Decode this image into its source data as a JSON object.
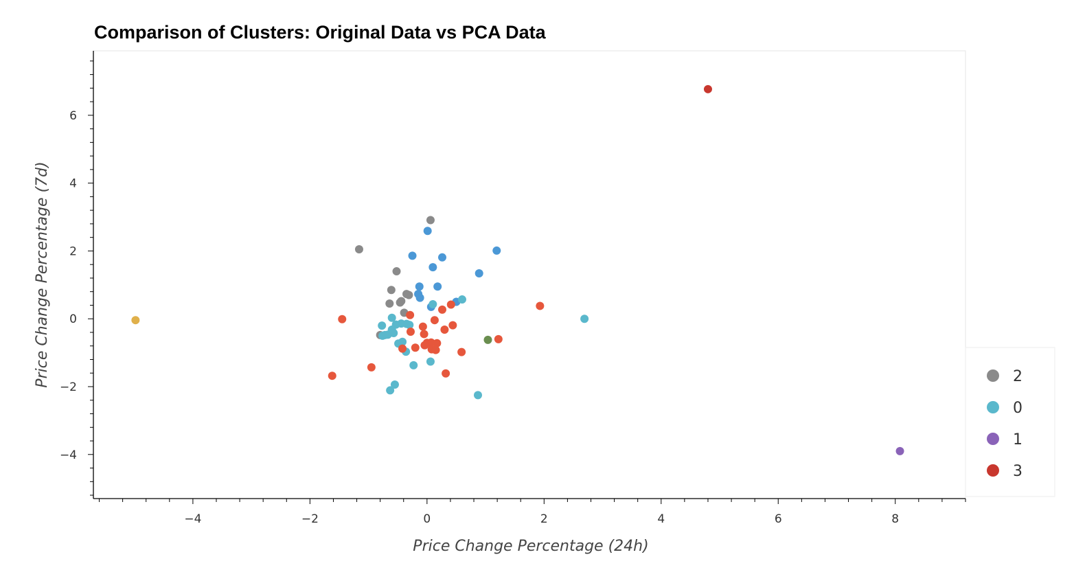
{
  "chart_data": {
    "type": "scatter",
    "title": "Comparison of Clusters: Original Data vs PCA Data",
    "xlabel": "Price Change Percentage (24h)",
    "ylabel": "Price Change Percentage (7d)",
    "xlim": [
      -5.7,
      9.2
    ],
    "ylim": [
      -5.3,
      7.9
    ],
    "x_ticks": [
      -4,
      -2,
      0,
      2,
      4,
      6,
      8
    ],
    "y_ticks": [
      -4,
      -2,
      0,
      2,
      4,
      6
    ],
    "x_tick_labels": [
      "−4",
      "−2",
      "0",
      "2",
      "4",
      "6",
      "8"
    ],
    "y_tick_labels": [
      "−4",
      "−2",
      "0",
      "2",
      "4",
      "6"
    ],
    "grid": false,
    "legend_position": "right-bottom",
    "legend": [
      {
        "label": "2",
        "color": "#8a8a8a"
      },
      {
        "label": "0",
        "color": "#5ab8cc"
      },
      {
        "label": "1",
        "color": "#8a63b8"
      },
      {
        "label": "3",
        "color": "#c8372e"
      }
    ],
    "series": [
      {
        "cluster": "gray",
        "color": "#8a8a8a",
        "points": [
          [
            -1.16,
            2.05
          ],
          [
            0.06,
            2.91
          ],
          [
            -0.52,
            1.4
          ],
          [
            -0.61,
            0.85
          ],
          [
            -0.35,
            0.73
          ],
          [
            -0.31,
            0.7
          ],
          [
            -0.44,
            0.52
          ],
          [
            -0.46,
            0.48
          ],
          [
            -0.64,
            0.45
          ],
          [
            -0.39,
            0.18
          ],
          [
            -0.8,
            -0.48
          ]
        ]
      },
      {
        "cluster": "blue",
        "color": "#4b98d6",
        "points": [
          [
            0.01,
            2.59
          ],
          [
            1.19,
            2.01
          ],
          [
            -0.25,
            1.86
          ],
          [
            0.26,
            1.81
          ],
          [
            0.1,
            1.52
          ],
          [
            0.89,
            1.34
          ],
          [
            -0.13,
            0.95
          ],
          [
            0.18,
            0.95
          ],
          [
            -0.15,
            0.73
          ],
          [
            -0.12,
            0.62
          ],
          [
            0.07,
            0.35
          ],
          [
            0.5,
            0.5
          ]
        ]
      },
      {
        "cluster": "cyan",
        "color": "#5ab8cc",
        "points": [
          [
            0.6,
            0.57
          ],
          [
            0.1,
            0.43
          ],
          [
            2.69,
            0.0
          ],
          [
            -0.6,
            0.03
          ],
          [
            -0.44,
            -0.14
          ],
          [
            -0.53,
            -0.17
          ],
          [
            -0.35,
            -0.15
          ],
          [
            -0.3,
            -0.18
          ],
          [
            -0.77,
            -0.2
          ],
          [
            -0.6,
            -0.32
          ],
          [
            -0.67,
            -0.47
          ],
          [
            -0.72,
            -0.48
          ],
          [
            -0.76,
            -0.5
          ],
          [
            -0.57,
            -0.42
          ],
          [
            -0.42,
            -0.68
          ],
          [
            -0.49,
            -0.73
          ],
          [
            -0.36,
            -0.97
          ],
          [
            0.06,
            -1.26
          ],
          [
            -0.23,
            -1.37
          ],
          [
            -0.55,
            -1.94
          ],
          [
            -0.63,
            -2.11
          ],
          [
            0.87,
            -2.25
          ]
        ]
      },
      {
        "cluster": "orange",
        "color": "#e6573c",
        "points": [
          [
            1.93,
            0.38
          ],
          [
            0.41,
            0.42
          ],
          [
            0.26,
            0.27
          ],
          [
            -0.29,
            0.11
          ],
          [
            0.13,
            -0.04
          ],
          [
            -1.45,
            -0.01
          ],
          [
            -0.07,
            -0.23
          ],
          [
            0.44,
            -0.19
          ],
          [
            0.3,
            -0.32
          ],
          [
            -0.28,
            -0.38
          ],
          [
            -0.05,
            -0.45
          ],
          [
            1.22,
            -0.6
          ],
          [
            0.0,
            -0.71
          ],
          [
            0.07,
            -0.7
          ],
          [
            0.17,
            -0.72
          ],
          [
            -0.04,
            -0.78
          ],
          [
            -0.2,
            -0.85
          ],
          [
            0.08,
            -0.9
          ],
          [
            0.15,
            -0.92
          ],
          [
            -0.42,
            -0.88
          ],
          [
            0.59,
            -0.98
          ],
          [
            -0.95,
            -1.43
          ],
          [
            0.32,
            -1.61
          ],
          [
            -1.62,
            -1.68
          ]
        ]
      },
      {
        "cluster": "gold",
        "color": "#e0b04a",
        "points": [
          [
            -4.98,
            -0.04
          ]
        ]
      },
      {
        "cluster": "olive",
        "color": "#6a8e4f",
        "points": [
          [
            1.04,
            -0.62
          ]
        ]
      },
      {
        "cluster": "purple",
        "color": "#8a63b8",
        "points": [
          [
            8.08,
            -3.9
          ]
        ]
      },
      {
        "cluster": "red",
        "color": "#c8372e",
        "points": [
          [
            4.8,
            6.77
          ]
        ]
      }
    ]
  }
}
